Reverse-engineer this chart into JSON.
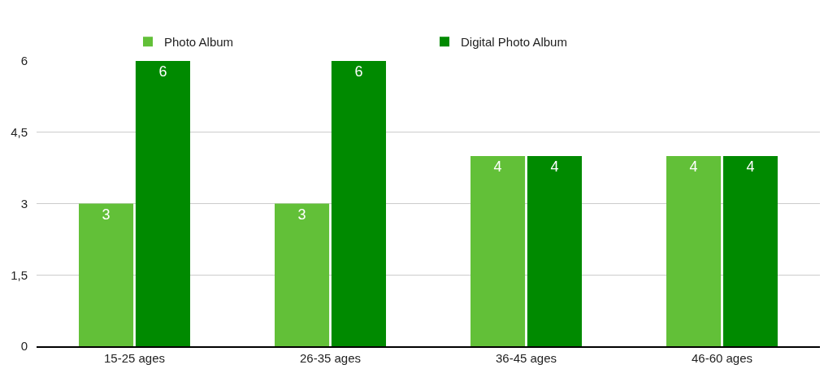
{
  "chart_data": {
    "type": "bar",
    "categories": [
      "15-25 ages",
      "26-35 ages",
      "36-45 ages",
      "46-60 ages"
    ],
    "series": [
      {
        "name": "Photo Album",
        "color": "#62c038",
        "values": [
          3,
          3,
          4,
          4
        ]
      },
      {
        "name": "Digital Photo Album",
        "color": "#008a00",
        "values": [
          6,
          6,
          4,
          4
        ]
      }
    ],
    "ylim": [
      0,
      6
    ],
    "yticks": [
      0,
      {
        "value": 1.5,
        "label": "1,5"
      },
      3,
      {
        "value": 4.5,
        "label": "4,5"
      },
      6
    ],
    "grid": "y",
    "legend": "top",
    "data_labels": true
  }
}
